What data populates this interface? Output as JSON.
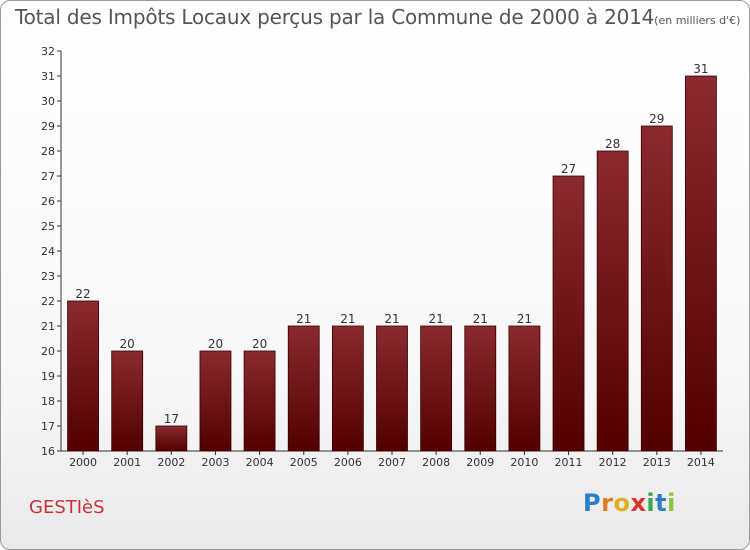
{
  "chart_data": {
    "type": "bar",
    "title": "Total des Impôts Locaux perçus par la Commune de 2000 à 2014",
    "unit_label": "(en milliers d'€)",
    "categories": [
      "2000",
      "2001",
      "2002",
      "2003",
      "2004",
      "2005",
      "2006",
      "2007",
      "2008",
      "2009",
      "2010",
      "2011",
      "2012",
      "2013",
      "2014"
    ],
    "values": [
      22,
      20,
      17,
      20,
      20,
      21,
      21,
      21,
      21,
      21,
      21,
      27,
      28,
      29,
      31
    ],
    "ylim": [
      16,
      32
    ],
    "yticks": [
      16,
      17,
      18,
      19,
      20,
      21,
      22,
      23,
      24,
      25,
      26,
      27,
      28,
      29,
      30,
      31,
      32
    ],
    "grid": false,
    "colors": {
      "bar_top": "#8a2a30",
      "bar_bottom": "#520000",
      "bar_edge": "#3a0000"
    }
  },
  "commune": "GESTIèS",
  "logo": {
    "letters": [
      "P",
      "r",
      "o",
      "x",
      "i",
      "t",
      "i"
    ],
    "colors": [
      "#2a7fc9",
      "#e07b1d",
      "#e0b020",
      "#d8342c",
      "#3aa84a",
      "#2a7fc9",
      "#8cc63f"
    ]
  }
}
